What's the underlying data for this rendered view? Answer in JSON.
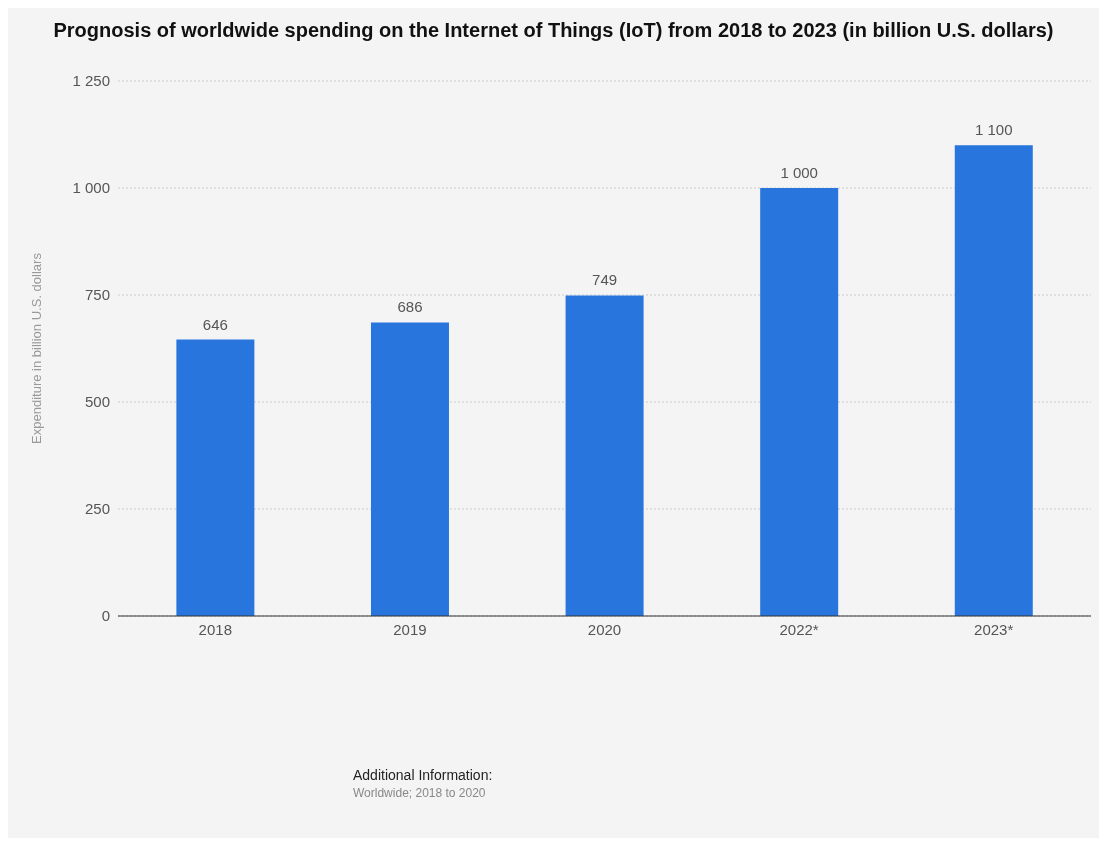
{
  "chart_data": {
    "type": "bar",
    "title": "Prognosis of worldwide spending on the Internet of Things (IoT) from 2018 to 2023 (in billion U.S. dollars)",
    "ylabel": "Expenditure in billion U.S. dollars",
    "categories": [
      "2018",
      "2019",
      "2020",
      "2022*",
      "2023*"
    ],
    "values": [
      646,
      686,
      749,
      1000,
      1100
    ],
    "value_labels": [
      "646",
      "686",
      "749",
      "1 000",
      "1 100"
    ],
    "color": "#2876dd",
    "ylim": [
      0,
      1250
    ],
    "yticks": [
      0,
      250,
      500,
      750,
      {
        "value": 1000,
        "label": "1 000"
      },
      {
        "value": 1250,
        "label": "1 250"
      }
    ],
    "grid": "y",
    "annotations": [
      "Additional Information:",
      "Worldwide; 2018 to 2020"
    ]
  }
}
